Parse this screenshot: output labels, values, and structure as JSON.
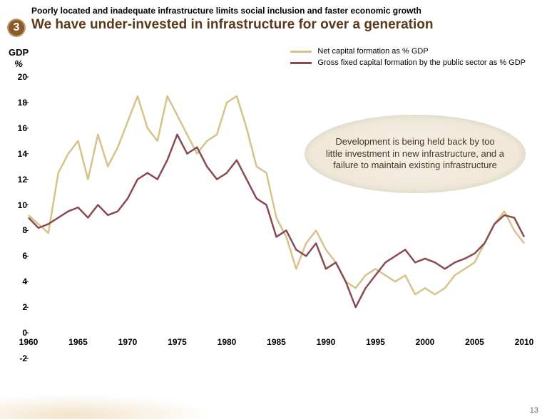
{
  "header": {
    "badge_number": "3",
    "subtitle": "Poorly located and inadequate infrastructure limits social inclusion and faster economic growth",
    "title": "We have under-invested in infrastructure for over a generation"
  },
  "chart": {
    "type": "line",
    "ylabel_line1": "GDP",
    "ylabel_line2": "%",
    "ylim": [
      -2,
      20
    ],
    "xlim": [
      1960,
      2010
    ],
    "yticks": [
      -2,
      0,
      2,
      4,
      6,
      8,
      10,
      12,
      14,
      16,
      18,
      20
    ],
    "xticks": [
      1960,
      1965,
      1970,
      1975,
      1980,
      1985,
      1990,
      1995,
      2000,
      2005,
      2010
    ],
    "background_color": "#ffffff",
    "grid": false,
    "series": [
      {
        "name": "Net capital formation as % GDP",
        "color": "#d6c28a",
        "line_width": 2.5,
        "data": [
          [
            1960,
            9.2
          ],
          [
            1961,
            8.5
          ],
          [
            1962,
            7.8
          ],
          [
            1963,
            12.5
          ],
          [
            1964,
            14.0
          ],
          [
            1965,
            15.0
          ],
          [
            1966,
            12.0
          ],
          [
            1967,
            15.5
          ],
          [
            1968,
            13.0
          ],
          [
            1969,
            14.5
          ],
          [
            1970,
            16.5
          ],
          [
            1971,
            18.5
          ],
          [
            1972,
            16.0
          ],
          [
            1973,
            15.0
          ],
          [
            1974,
            18.5
          ],
          [
            1975,
            17.0
          ],
          [
            1976,
            15.5
          ],
          [
            1977,
            14.0
          ],
          [
            1978,
            15.0
          ],
          [
            1979,
            15.5
          ],
          [
            1980,
            18.0
          ],
          [
            1981,
            18.5
          ],
          [
            1982,
            16.0
          ],
          [
            1983,
            13.0
          ],
          [
            1984,
            12.5
          ],
          [
            1985,
            9.0
          ],
          [
            1986,
            7.5
          ],
          [
            1987,
            5.0
          ],
          [
            1988,
            7.0
          ],
          [
            1989,
            8.0
          ],
          [
            1990,
            6.5
          ],
          [
            1991,
            5.5
          ],
          [
            1992,
            4.0
          ],
          [
            1993,
            3.5
          ],
          [
            1994,
            4.5
          ],
          [
            1995,
            5.0
          ],
          [
            1996,
            4.5
          ],
          [
            1997,
            4.0
          ],
          [
            1998,
            4.5
          ],
          [
            1999,
            3.0
          ],
          [
            2000,
            3.5
          ],
          [
            2001,
            3.0
          ],
          [
            2002,
            3.5
          ],
          [
            2003,
            4.5
          ],
          [
            2004,
            5.0
          ],
          [
            2005,
            5.5
          ],
          [
            2006,
            7.0
          ],
          [
            2007,
            8.5
          ],
          [
            2008,
            9.5
          ],
          [
            2009,
            8.0
          ],
          [
            2010,
            7.0
          ]
        ]
      },
      {
        "name": "Gross fixed capital formation by the public sector as % GDP",
        "color": "#8a4a52",
        "line_width": 2.5,
        "data": [
          [
            1960,
            9.0
          ],
          [
            1961,
            8.2
          ],
          [
            1962,
            8.5
          ],
          [
            1963,
            9.0
          ],
          [
            1964,
            9.5
          ],
          [
            1965,
            9.8
          ],
          [
            1966,
            9.0
          ],
          [
            1967,
            10.0
          ],
          [
            1968,
            9.2
          ],
          [
            1969,
            9.5
          ],
          [
            1970,
            10.5
          ],
          [
            1971,
            12.0
          ],
          [
            1972,
            12.5
          ],
          [
            1973,
            12.0
          ],
          [
            1974,
            13.5
          ],
          [
            1975,
            15.5
          ],
          [
            1976,
            14.0
          ],
          [
            1977,
            14.5
          ],
          [
            1978,
            13.0
          ],
          [
            1979,
            12.0
          ],
          [
            1980,
            12.5
          ],
          [
            1981,
            13.5
          ],
          [
            1982,
            12.0
          ],
          [
            1983,
            10.5
          ],
          [
            1984,
            10.0
          ],
          [
            1985,
            7.5
          ],
          [
            1986,
            8.0
          ],
          [
            1987,
            6.5
          ],
          [
            1988,
            6.0
          ],
          [
            1989,
            7.0
          ],
          [
            1990,
            5.0
          ],
          [
            1991,
            5.5
          ],
          [
            1992,
            4.0
          ],
          [
            1993,
            2.0
          ],
          [
            1994,
            3.5
          ],
          [
            1995,
            4.5
          ],
          [
            1996,
            5.5
          ],
          [
            1997,
            6.0
          ],
          [
            1998,
            6.5
          ],
          [
            1999,
            5.5
          ],
          [
            2000,
            5.8
          ],
          [
            2001,
            5.5
          ],
          [
            2002,
            5.0
          ],
          [
            2003,
            5.5
          ],
          [
            2004,
            5.8
          ],
          [
            2005,
            6.2
          ],
          [
            2006,
            7.0
          ],
          [
            2007,
            8.5
          ],
          [
            2008,
            9.2
          ],
          [
            2009,
            9.0
          ],
          [
            2010,
            7.5
          ]
        ]
      }
    ],
    "legend_position": "top-right"
  },
  "callout_text": "Development is being held back by too little investment in new infrastructure, and a failure to maintain existing infrastructure",
  "page_number": "13",
  "colors": {
    "badge_bg": "#8a5a2a",
    "badge_border": "#c0a070",
    "title_color": "#5a3a1a",
    "callout_bg": "#ede4d0",
    "callout_text_color": "#4a3520"
  }
}
